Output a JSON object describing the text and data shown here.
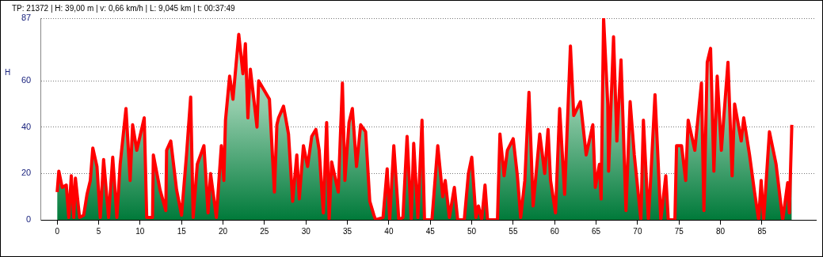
{
  "chart_data": {
    "type": "area",
    "title": "TP: 21372 | H: 39,00 m | v: 0,66 km/h | L: 9,045 km | t: 00:37:49",
    "ylabel": "H",
    "x": [
      0,
      0.2,
      0.6,
      1.1,
      1.4,
      1.7,
      2.0,
      2.2,
      2.7,
      3.2,
      3.6,
      4.0,
      4.3,
      4.8,
      5.2,
      5.6,
      6.2,
      6.7,
      7.2,
      7.6,
      8.3,
      8.8,
      9.1,
      9.6,
      10.5,
      10.8,
      11.5,
      11.6,
      12.4,
      13.1,
      13.2,
      13.7,
      14.4,
      15.0,
      15.6,
      16.1,
      16.4,
      16.9,
      17.7,
      18.2,
      18.5,
      19.2,
      19.8,
      20.1,
      20.3,
      20.8,
      21.2,
      21.9,
      22.4,
      22.7,
      23.0,
      23.3,
      24.1,
      24.3,
      25.6,
      26.2,
      26.5,
      26.7,
      27.3,
      27.6,
      27.9,
      28.4,
      28.9,
      29.2,
      29.7,
      30.2,
      30.7,
      31.2,
      31.6,
      32.1,
      32.5,
      32.8,
      33.1,
      33.9,
      34.4,
      34.7,
      35.2,
      35.6,
      36.1,
      36.6,
      37.2,
      37.7,
      38.2,
      38.4,
      39.3,
      39.8,
      40.1,
      40.6,
      41.2,
      41.7,
      42.2,
      42.7,
      43.0,
      43.5,
      44.0,
      44.3,
      45.2,
      45.9,
      46.5,
      46.8,
      47.3,
      47.9,
      48.3,
      49.1,
      49.6,
      50.0,
      50.5,
      50.8,
      51.2,
      51.6,
      51.9,
      53.1,
      53.4,
      53.9,
      54.3,
      55.0,
      55.5,
      55.9,
      56.4,
      56.9,
      57.4,
      58.2,
      58.8,
      59.2,
      59.5,
      60.1,
      60.6,
      61.2,
      61.9,
      62.3,
      63.1,
      63.8,
      64.6,
      64.9,
      65.4,
      65.6,
      65.9,
      66.4,
      66.5,
      67.1,
      67.5,
      68.0,
      68.6,
      69.1,
      69.6,
      70.4,
      70.7,
      71.3,
      71.6,
      72.1,
      72.8,
      73.4,
      73.7,
      74.5,
      74.7,
      75.3,
      75.8,
      76.1,
      76.9,
      77.7,
      78.0,
      78.4,
      78.8,
      79.2,
      79.6,
      80.1,
      80.9,
      81.4,
      81.7,
      82.5,
      82.8,
      83.5,
      84.1,
      84.6,
      84.9,
      85.2,
      85.9,
      86.7,
      87.5,
      88.1,
      88.3,
      88.6
    ],
    "series": [
      {
        "color": "#ff0000",
        "values": [
          12,
          21,
          14,
          15,
          1,
          19,
          1,
          18,
          1,
          2,
          11,
          17,
          31,
          23,
          1,
          26,
          1,
          27,
          1,
          24,
          48,
          17,
          41,
          30,
          44,
          1,
          1,
          28,
          13,
          4,
          30,
          34,
          13,
          2,
          28,
          53,
          1,
          24,
          32,
          3,
          20,
          1,
          32,
          17,
          43,
          62,
          52,
          80,
          63,
          76,
          44,
          65,
          40,
          60,
          52,
          12,
          41,
          44,
          49,
          43,
          37,
          8,
          28,
          9,
          32,
          23,
          36,
          39,
          30,
          3,
          42,
          0,
          25,
          12,
          59,
          17,
          42,
          48,
          23,
          41,
          38,
          8,
          2,
          0,
          1,
          22,
          0,
          32,
          0,
          1,
          36,
          0,
          33,
          1,
          43,
          0,
          0,
          32,
          10,
          17,
          1,
          14,
          0,
          0,
          20,
          27,
          1,
          6,
          0,
          15,
          0,
          0,
          37,
          19,
          30,
          35,
          19,
          1,
          17,
          55,
          6,
          37,
          20,
          39,
          17,
          3,
          48,
          11,
          75,
          45,
          51,
          28,
          41,
          14,
          24,
          9,
          87,
          50,
          21,
          79,
          34,
          69,
          4,
          51,
          28,
          0,
          43,
          0,
          19,
          54,
          0,
          19,
          0,
          0,
          32,
          32,
          17,
          43,
          30,
          59,
          4,
          68,
          74,
          21,
          62,
          30,
          68,
          19,
          50,
          34,
          44,
          28,
          12,
          0,
          17,
          0,
          38,
          24,
          0,
          16,
          3,
          41
        ]
      }
    ],
    "xlim": [
      -2,
      91.5
    ],
    "xticks": [
      0,
      5,
      10,
      15,
      20,
      25,
      30,
      35,
      40,
      45,
      50,
      55,
      60,
      65,
      70,
      75,
      80,
      85
    ],
    "ylim": [
      0,
      87
    ],
    "yticks": [
      0,
      20,
      40,
      60,
      87
    ],
    "grid": "y",
    "legend": false,
    "marker": "none",
    "line_style": "solid"
  }
}
